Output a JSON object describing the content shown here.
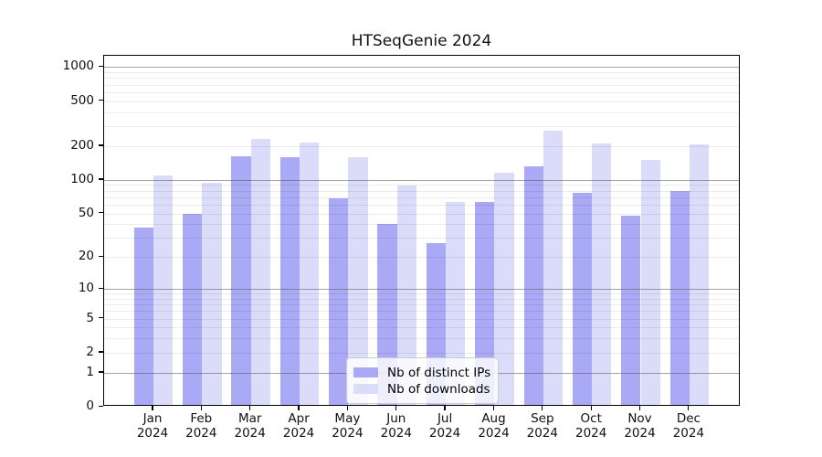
{
  "title": "HTSeqGenie 2024",
  "chart_data": {
    "type": "bar",
    "title": "HTSeqGenie 2024",
    "categories": [
      "Jan 2024",
      "Feb 2024",
      "Mar 2024",
      "Apr 2024",
      "May 2024",
      "Jun 2024",
      "Jul 2024",
      "Aug 2024",
      "Sep 2024",
      "Oct 2024",
      "Nov 2024",
      "Dec 2024"
    ],
    "series": [
      {
        "name": "Nb of distinct IPs",
        "color": "#a9a9f5",
        "values": [
          36,
          48,
          155,
          153,
          66,
          39,
          26,
          61,
          128,
          74,
          46,
          77
        ]
      },
      {
        "name": "Nb of downloads",
        "color": "#dbdcfa",
        "values": [
          105,
          90,
          222,
          208,
          153,
          86,
          61,
          111,
          264,
          202,
          144,
          198
        ]
      }
    ],
    "yscale": "log1p",
    "yticks": [
      0,
      1,
      2,
      5,
      10,
      20,
      50,
      100,
      200,
      500,
      1000
    ],
    "ylim": [
      0,
      1258
    ],
    "xlabel": "",
    "ylabel": "",
    "grid": "horizontal major and log-minor gridlines drawn over bars",
    "legend_position": "lower center"
  }
}
